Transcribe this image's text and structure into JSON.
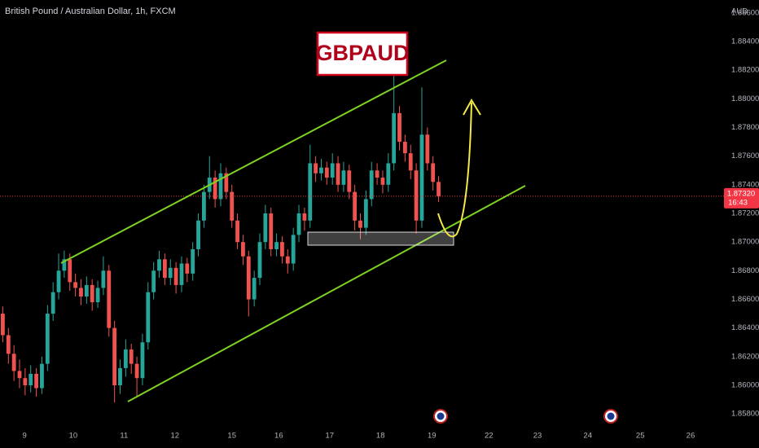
{
  "chart_data": {
    "type": "candlestick",
    "title": "British Pound / Australian Dollar, 1h, FXCM",
    "annotation": "GBPAUD",
    "y_axis_label": "AUD",
    "last_price": {
      "value": 1.8732,
      "label": "1.87320"
    },
    "countdown": "16:43",
    "up_color": "#26a69a",
    "down_color": "#ef5350",
    "grid": false,
    "xlim": [
      0,
      129
    ],
    "ylim": [
      1.8571,
      1.8869
    ],
    "xticks": [
      {
        "value": 4.4,
        "label": "9"
      },
      {
        "value": 13.1,
        "label": "10"
      },
      {
        "value": 22.2,
        "label": "11"
      },
      {
        "value": 31.3,
        "label": "12"
      },
      {
        "value": 41.5,
        "label": "15"
      },
      {
        "value": 49.9,
        "label": "16"
      },
      {
        "value": 59,
        "label": "17"
      },
      {
        "value": 68.1,
        "label": "18"
      },
      {
        "value": 77.3,
        "label": "19"
      },
      {
        "value": 87.5,
        "label": "22"
      },
      {
        "value": 96.2,
        "label": "23"
      },
      {
        "value": 105.2,
        "label": "24"
      },
      {
        "value": 114.6,
        "label": "25"
      },
      {
        "value": 123.6,
        "label": "26"
      }
    ],
    "yticks": [
      {
        "value": 1.886,
        "label": "1.88600"
      },
      {
        "value": 1.884,
        "label": "1.88400"
      },
      {
        "value": 1.882,
        "label": "1.88200"
      },
      {
        "value": 1.88,
        "label": "1.88000"
      },
      {
        "value": 1.878,
        "label": "1.87800"
      },
      {
        "value": 1.876,
        "label": "1.87600"
      },
      {
        "value": 1.874,
        "label": "1.87400"
      },
      {
        "value": 1.872,
        "label": "1.87200"
      },
      {
        "value": 1.87,
        "label": "1.87000"
      },
      {
        "value": 1.868,
        "label": "1.86800"
      },
      {
        "value": 1.866,
        "label": "1.86600"
      },
      {
        "value": 1.864,
        "label": "1.86400"
      },
      {
        "value": 1.862,
        "label": "1.86200"
      },
      {
        "value": 1.86,
        "label": "1.86000"
      },
      {
        "value": 1.858,
        "label": "1.85800"
      }
    ],
    "candles": [
      [
        1.865,
        1.8655,
        1.863,
        1.8635
      ],
      [
        1.8635,
        1.864,
        1.8615,
        1.8622
      ],
      [
        1.8622,
        1.8628,
        1.8603,
        1.861
      ],
      [
        1.861,
        1.8618,
        1.8598,
        1.8605
      ],
      [
        1.8605,
        1.8612,
        1.8593,
        1.86
      ],
      [
        1.86,
        1.8614,
        1.8595,
        1.8608
      ],
      [
        1.8608,
        1.8612,
        1.8592,
        1.8598
      ],
      [
        1.8598,
        1.862,
        1.8594,
        1.8615
      ],
      [
        1.8615,
        1.8656,
        1.861,
        1.865
      ],
      [
        1.865,
        1.8672,
        1.8645,
        1.8665
      ],
      [
        1.8665,
        1.8692,
        1.866,
        1.868
      ],
      [
        1.868,
        1.8694,
        1.8675,
        1.8688
      ],
      [
        1.8688,
        1.8692,
        1.8666,
        1.8672
      ],
      [
        1.8672,
        1.8678,
        1.8662,
        1.8668
      ],
      [
        1.8668,
        1.8674,
        1.8656,
        1.8662
      ],
      [
        1.8662,
        1.8676,
        1.8657,
        1.867
      ],
      [
        1.867,
        1.8674,
        1.8652,
        1.8658
      ],
      [
        1.8658,
        1.8673,
        1.8654,
        1.8668
      ],
      [
        1.8668,
        1.869,
        1.8663,
        1.868
      ],
      [
        1.868,
        1.8684,
        1.8634,
        1.864
      ],
      [
        1.864,
        1.8645,
        1.8588,
        1.86
      ],
      [
        1.86,
        1.8618,
        1.8594,
        1.8612
      ],
      [
        1.8612,
        1.8632,
        1.8606,
        1.8625
      ],
      [
        1.8625,
        1.8629,
        1.8608,
        1.8615
      ],
      [
        1.8615,
        1.862,
        1.8592,
        1.8605
      ],
      [
        1.8605,
        1.8636,
        1.86,
        1.863
      ],
      [
        1.863,
        1.8672,
        1.8625,
        1.8665
      ],
      [
        1.8665,
        1.8686,
        1.866,
        1.868
      ],
      [
        1.868,
        1.8694,
        1.8675,
        1.8688
      ],
      [
        1.8688,
        1.8692,
        1.867,
        1.8675
      ],
      [
        1.8675,
        1.8688,
        1.867,
        1.8682
      ],
      [
        1.8682,
        1.8686,
        1.8664,
        1.867
      ],
      [
        1.867,
        1.869,
        1.8665,
        1.8685
      ],
      [
        1.8685,
        1.8689,
        1.8672,
        1.8678
      ],
      [
        1.8678,
        1.87,
        1.8673,
        1.8695
      ],
      [
        1.8695,
        1.872,
        1.869,
        1.8715
      ],
      [
        1.8715,
        1.874,
        1.871,
        1.8735
      ],
      [
        1.8735,
        1.876,
        1.873,
        1.8745
      ],
      [
        1.8745,
        1.875,
        1.8724,
        1.873
      ],
      [
        1.873,
        1.8755,
        1.8725,
        1.8748
      ],
      [
        1.8748,
        1.8752,
        1.873,
        1.8735
      ],
      [
        1.8735,
        1.874,
        1.871,
        1.8715
      ],
      [
        1.8715,
        1.872,
        1.8695,
        1.87
      ],
      [
        1.87,
        1.8705,
        1.8684,
        1.869
      ],
      [
        1.869,
        1.8694,
        1.8648,
        1.866
      ],
      [
        1.866,
        1.868,
        1.8655,
        1.8675
      ],
      [
        1.8675,
        1.8706,
        1.867,
        1.87
      ],
      [
        1.87,
        1.8726,
        1.8695,
        1.872
      ],
      [
        1.872,
        1.8724,
        1.869,
        1.8695
      ],
      [
        1.8695,
        1.8706,
        1.869,
        1.87
      ],
      [
        1.87,
        1.8704,
        1.8685,
        1.869
      ],
      [
        1.869,
        1.8695,
        1.8678,
        1.8685
      ],
      [
        1.8685,
        1.871,
        1.868,
        1.8705
      ],
      [
        1.8705,
        1.8726,
        1.87,
        1.872
      ],
      [
        1.872,
        1.8724,
        1.8708,
        1.8715
      ],
      [
        1.8715,
        1.8768,
        1.871,
        1.8755
      ],
      [
        1.8755,
        1.876,
        1.8742,
        1.8748
      ],
      [
        1.8748,
        1.8758,
        1.8743,
        1.8752
      ],
      [
        1.8752,
        1.8756,
        1.874,
        1.8745
      ],
      [
        1.8745,
        1.8762,
        1.874,
        1.8755
      ],
      [
        1.8755,
        1.876,
        1.8735,
        1.874
      ],
      [
        1.874,
        1.8756,
        1.8735,
        1.875
      ],
      [
        1.875,
        1.8754,
        1.873,
        1.8735
      ],
      [
        1.8735,
        1.874,
        1.8708,
        1.8715
      ],
      [
        1.8715,
        1.872,
        1.8702,
        1.871
      ],
      [
        1.871,
        1.8736,
        1.8705,
        1.873
      ],
      [
        1.873,
        1.8756,
        1.8725,
        1.875
      ],
      [
        1.875,
        1.8755,
        1.874,
        1.8745
      ],
      [
        1.8745,
        1.875,
        1.8734,
        1.874
      ],
      [
        1.874,
        1.8762,
        1.8735,
        1.8755
      ],
      [
        1.8755,
        1.882,
        1.875,
        1.879
      ],
      [
        1.879,
        1.8795,
        1.8764,
        1.877
      ],
      [
        1.877,
        1.8775,
        1.8756,
        1.8762
      ],
      [
        1.8762,
        1.8768,
        1.8744,
        1.875
      ],
      [
        1.875,
        1.8755,
        1.8706,
        1.8715
      ],
      [
        1.8715,
        1.8808,
        1.871,
        1.8775
      ],
      [
        1.8775,
        1.878,
        1.875,
        1.8755
      ],
      [
        1.8755,
        1.876,
        1.8736,
        1.8742
      ],
      [
        1.8742,
        1.8746,
        1.8728,
        1.8732
      ]
    ]
  }
}
